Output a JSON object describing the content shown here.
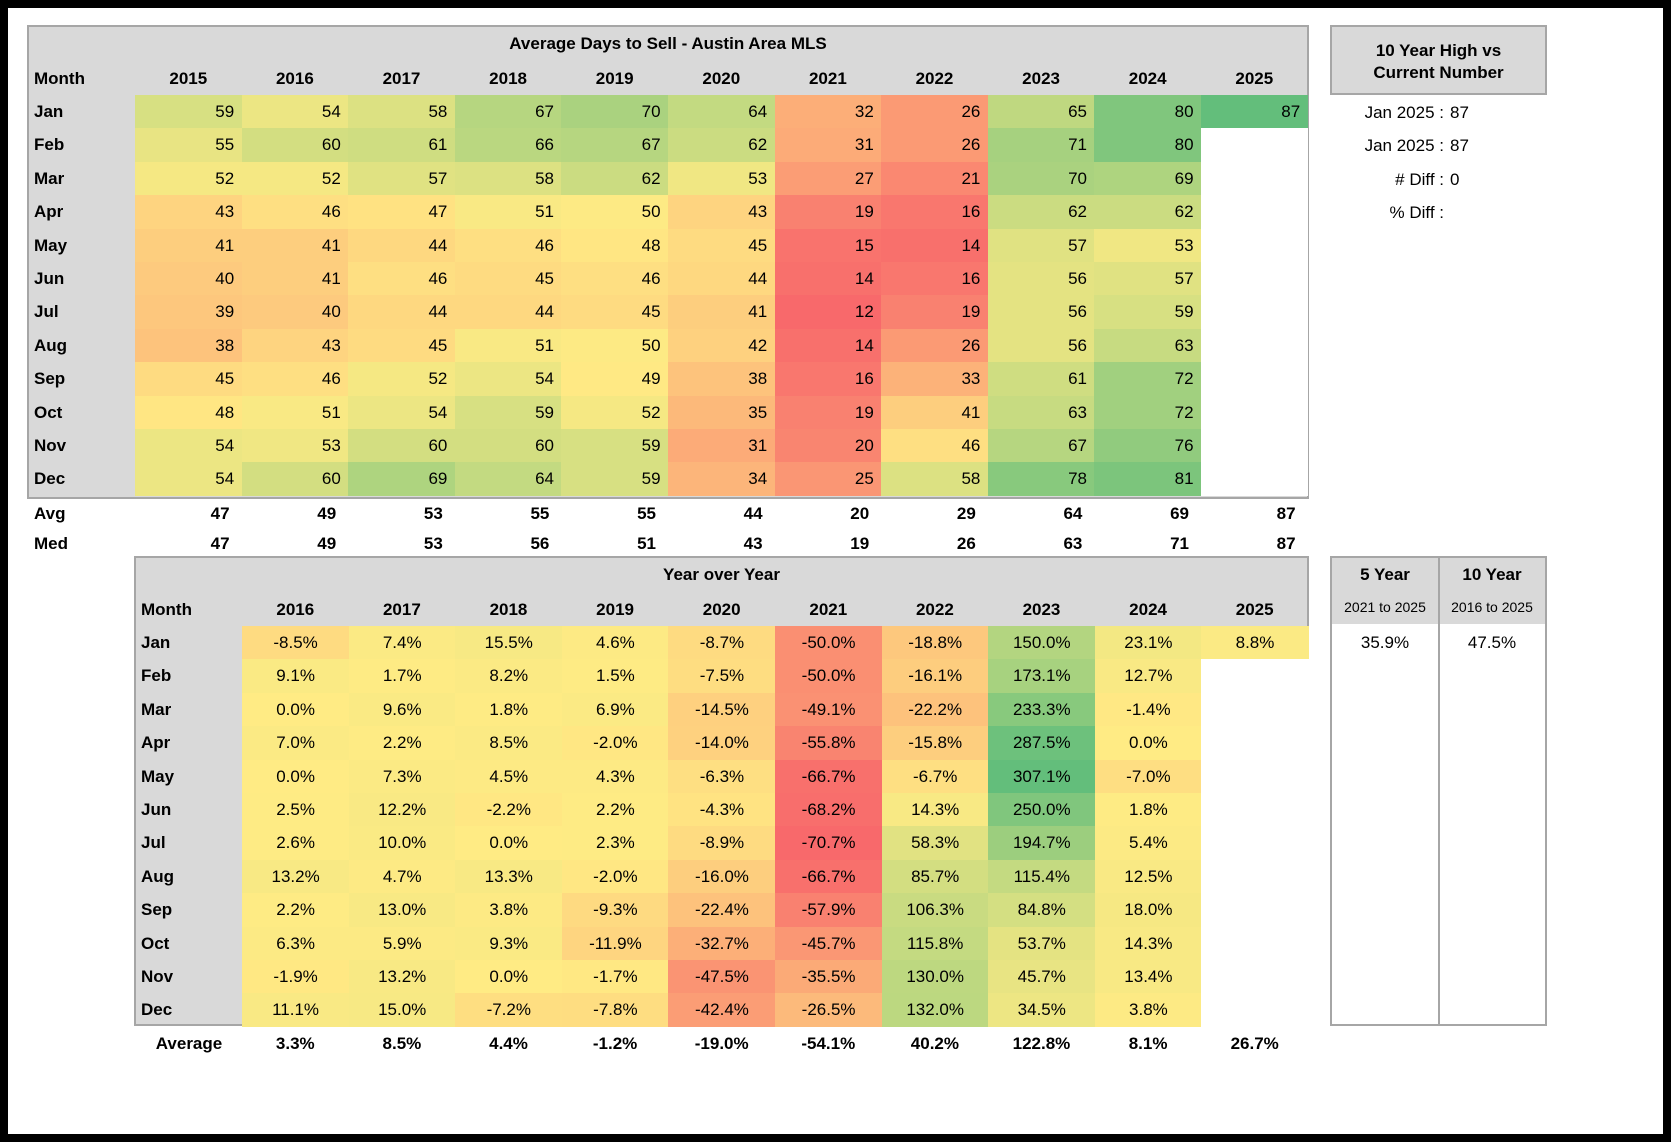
{
  "chart_data": [
    {
      "type": "heatmap",
      "title": "Average Days to Sell - Austin Area MLS",
      "row_header": "Month",
      "columns": [
        "2015",
        "2016",
        "2017",
        "2018",
        "2019",
        "2020",
        "2021",
        "2022",
        "2023",
        "2024",
        "2025"
      ],
      "rows": [
        "Jan",
        "Feb",
        "Mar",
        "Apr",
        "May",
        "Jun",
        "Jul",
        "Aug",
        "Sep",
        "Oct",
        "Nov",
        "Dec"
      ],
      "values": [
        [
          59,
          54,
          58,
          67,
          70,
          64,
          32,
          26,
          65,
          80,
          87
        ],
        [
          55,
          60,
          61,
          66,
          67,
          62,
          31,
          26,
          71,
          80,
          null
        ],
        [
          52,
          52,
          57,
          58,
          62,
          53,
          27,
          21,
          70,
          69,
          null
        ],
        [
          43,
          46,
          47,
          51,
          50,
          43,
          19,
          16,
          62,
          62,
          null
        ],
        [
          41,
          41,
          44,
          46,
          48,
          45,
          15,
          14,
          57,
          53,
          null
        ],
        [
          40,
          41,
          46,
          45,
          46,
          44,
          14,
          16,
          56,
          57,
          null
        ],
        [
          39,
          40,
          44,
          44,
          45,
          41,
          12,
          19,
          56,
          59,
          null
        ],
        [
          38,
          43,
          45,
          51,
          50,
          42,
          14,
          26,
          56,
          63,
          null
        ],
        [
          45,
          46,
          52,
          54,
          49,
          38,
          16,
          33,
          61,
          72,
          null
        ],
        [
          48,
          51,
          54,
          59,
          52,
          35,
          19,
          41,
          63,
          72,
          null
        ],
        [
          54,
          53,
          60,
          60,
          59,
          31,
          20,
          46,
          67,
          76,
          null
        ],
        [
          54,
          60,
          69,
          64,
          59,
          34,
          25,
          58,
          78,
          81,
          null
        ]
      ],
      "summary": [
        {
          "label": "Avg",
          "values": [
            47,
            49,
            53,
            55,
            55,
            44,
            20,
            29,
            64,
            69,
            87
          ]
        },
        {
          "label": "Med",
          "values": [
            47,
            49,
            53,
            56,
            51,
            43,
            19,
            26,
            63,
            71,
            87
          ]
        }
      ]
    },
    {
      "type": "heatmap",
      "title": "Year over Year",
      "row_header": "Month",
      "columns": [
        "2016",
        "2017",
        "2018",
        "2019",
        "2020",
        "2021",
        "2022",
        "2023",
        "2024",
        "2025"
      ],
      "rows": [
        "Jan",
        "Feb",
        "Mar",
        "Apr",
        "May",
        "Jun",
        "Jul",
        "Aug",
        "Sep",
        "Oct",
        "Nov",
        "Dec"
      ],
      "values": [
        [
          "-8.5%",
          "7.4%",
          "15.5%",
          "4.6%",
          "-8.7%",
          "-50.0%",
          "-18.8%",
          "150.0%",
          "23.1%",
          "8.8%"
        ],
        [
          "9.1%",
          "1.7%",
          "8.2%",
          "1.5%",
          "-7.5%",
          "-50.0%",
          "-16.1%",
          "173.1%",
          "12.7%",
          null
        ],
        [
          "0.0%",
          "9.6%",
          "1.8%",
          "6.9%",
          "-14.5%",
          "-49.1%",
          "-22.2%",
          "233.3%",
          "-1.4%",
          null
        ],
        [
          "7.0%",
          "2.2%",
          "8.5%",
          "-2.0%",
          "-14.0%",
          "-55.8%",
          "-15.8%",
          "287.5%",
          "0.0%",
          null
        ],
        [
          "0.0%",
          "7.3%",
          "4.5%",
          "4.3%",
          "-6.3%",
          "-66.7%",
          "-6.7%",
          "307.1%",
          "-7.0%",
          null
        ],
        [
          "2.5%",
          "12.2%",
          "-2.2%",
          "2.2%",
          "-4.3%",
          "-68.2%",
          "14.3%",
          "250.0%",
          "1.8%",
          null
        ],
        [
          "2.6%",
          "10.0%",
          "0.0%",
          "2.3%",
          "-8.9%",
          "-70.7%",
          "58.3%",
          "194.7%",
          "5.4%",
          null
        ],
        [
          "13.2%",
          "4.7%",
          "13.3%",
          "-2.0%",
          "-16.0%",
          "-66.7%",
          "85.7%",
          "115.4%",
          "12.5%",
          null
        ],
        [
          "2.2%",
          "13.0%",
          "3.8%",
          "-9.3%",
          "-22.4%",
          "-57.9%",
          "106.3%",
          "84.8%",
          "18.0%",
          null
        ],
        [
          "6.3%",
          "5.9%",
          "9.3%",
          "-11.9%",
          "-32.7%",
          "-45.7%",
          "115.8%",
          "53.7%",
          "14.3%",
          null
        ],
        [
          "-1.9%",
          "13.2%",
          "0.0%",
          "-1.7%",
          "-47.5%",
          "-35.5%",
          "130.0%",
          "45.7%",
          "13.4%",
          null
        ],
        [
          "11.1%",
          "15.0%",
          "-7.2%",
          "-7.8%",
          "-42.4%",
          "-26.5%",
          "132.0%",
          "34.5%",
          "3.8%",
          null
        ]
      ],
      "summary": [
        {
          "label": "Average",
          "values": [
            "3.3%",
            "8.5%",
            "4.4%",
            "-1.2%",
            "-19.0%",
            "-54.1%",
            "40.2%",
            "122.8%",
            "8.1%",
            "26.7%"
          ]
        }
      ]
    }
  ],
  "side_panel": {
    "title_line1": "10 Year High vs",
    "title_line2": "Current Number",
    "rows": [
      {
        "label": "Jan 2025 :",
        "value": "87"
      },
      {
        "label": "Jan 2025 :",
        "value": "87"
      },
      {
        "label": "# Diff :",
        "value": "0"
      },
      {
        "label": "% Diff :",
        "value": ""
      }
    ]
  },
  "growth_panel": {
    "columns": [
      {
        "title": "5 Year",
        "range": "2021 to 2025",
        "value": "35.9%"
      },
      {
        "title": "10 Year",
        "range": "2016 to 2025",
        "value": "47.5%"
      }
    ]
  },
  "colors": {
    "header_bg": "#d9d9d9",
    "border": "#a6a6a6",
    "scale_low": "#f8696b",
    "scale_mid": "#ffeb84",
    "scale_high": "#63be7b"
  }
}
